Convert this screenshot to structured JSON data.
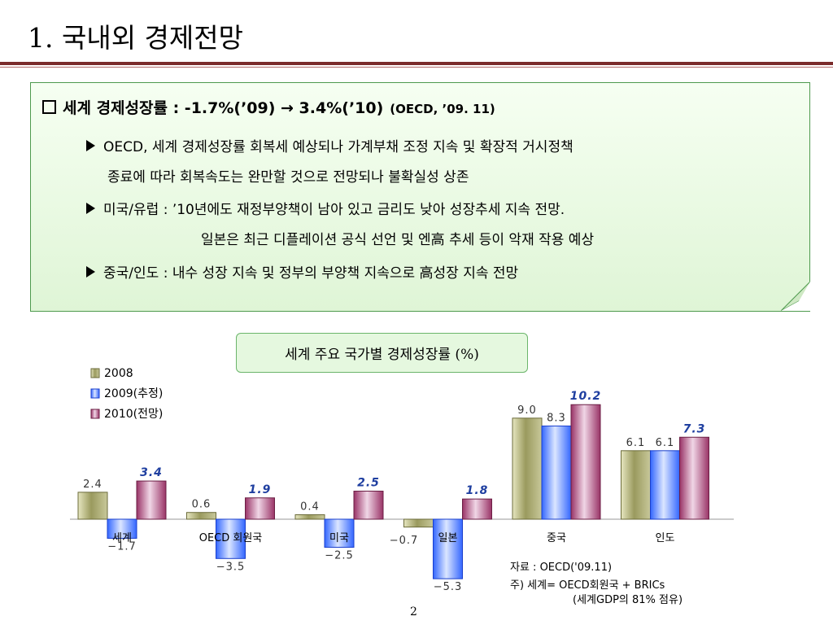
{
  "slide": {
    "title": "1. 국내외 경제전망",
    "page_number": "2"
  },
  "summary": {
    "heading": "세계 경제성장률 :  -1.7%(’09) → 3.4%(’10)",
    "heading_source": "(OECD, ’09. 11)",
    "bullets": [
      {
        "lines": [
          "OECD, 세계 경제성장률 회복세 예상되나 가계부채 조정 지속 및 확장적 거시정책",
          "종료에 따라 회복속도는 완만할 것으로 전망되나 불확실성 상존"
        ]
      },
      {
        "lines": [
          "미국/유럽 : ’10년에도 재정부양책이 남아 있고 금리도 낮아 성장추세 지속 전망.",
          "일본은 최근 디플레이션 공식 선언 및 엔高 추세 등이 악재 작용 예상"
        ]
      },
      {
        "lines": [
          "중국/인도 : 내수 성장 지속 및 정부의 부양책 지속으로 高성장 지속 전망"
        ]
      }
    ]
  },
  "chart_title": "세계 주요 국가별 경제성장률 (%)",
  "chart_data": {
    "type": "bar",
    "title": "세계 주요 국가별 경제성장률 (%)",
    "categories": [
      "세계",
      "OECD 회원국",
      "미국",
      "일본",
      "중국",
      "인도"
    ],
    "series": [
      {
        "name": "2008",
        "values": [
          2.4,
          0.6,
          0.4,
          -0.7,
          9.0,
          6.1
        ],
        "labels": [
          "2.4",
          "0.6",
          "0.4",
          "-0.7",
          "9.0",
          "6.1"
        ],
        "color": "#9a9a5e"
      },
      {
        "name": "2009(추정)",
        "values": [
          -1.7,
          -3.5,
          -2.5,
          -5.3,
          8.3,
          6.1
        ],
        "labels": [
          "-1.7",
          "-3.5",
          "-2.5",
          "-5.3",
          "8.3",
          "6.1"
        ],
        "color": "#3366ff"
      },
      {
        "name": "2010(전망)",
        "values": [
          3.4,
          1.9,
          2.5,
          1.8,
          10.2,
          7.3
        ],
        "labels": [
          "3.4",
          "1.9",
          "2.5",
          "1.8",
          "10.2",
          "7.3"
        ],
        "color": "#993366"
      }
    ],
    "label_color_2010": "#1f3fa0",
    "legend_position": "top-left",
    "grid": false
  },
  "footnotes": {
    "source": "자료 : OECD('09.11)",
    "note1": "주) 세계= OECD회원국 + BRICs",
    "note2": "(세계GDP의 81% 점유)"
  },
  "colors": {
    "box_border": "#4e9a4e",
    "title_rule": "#7b2b2b"
  }
}
